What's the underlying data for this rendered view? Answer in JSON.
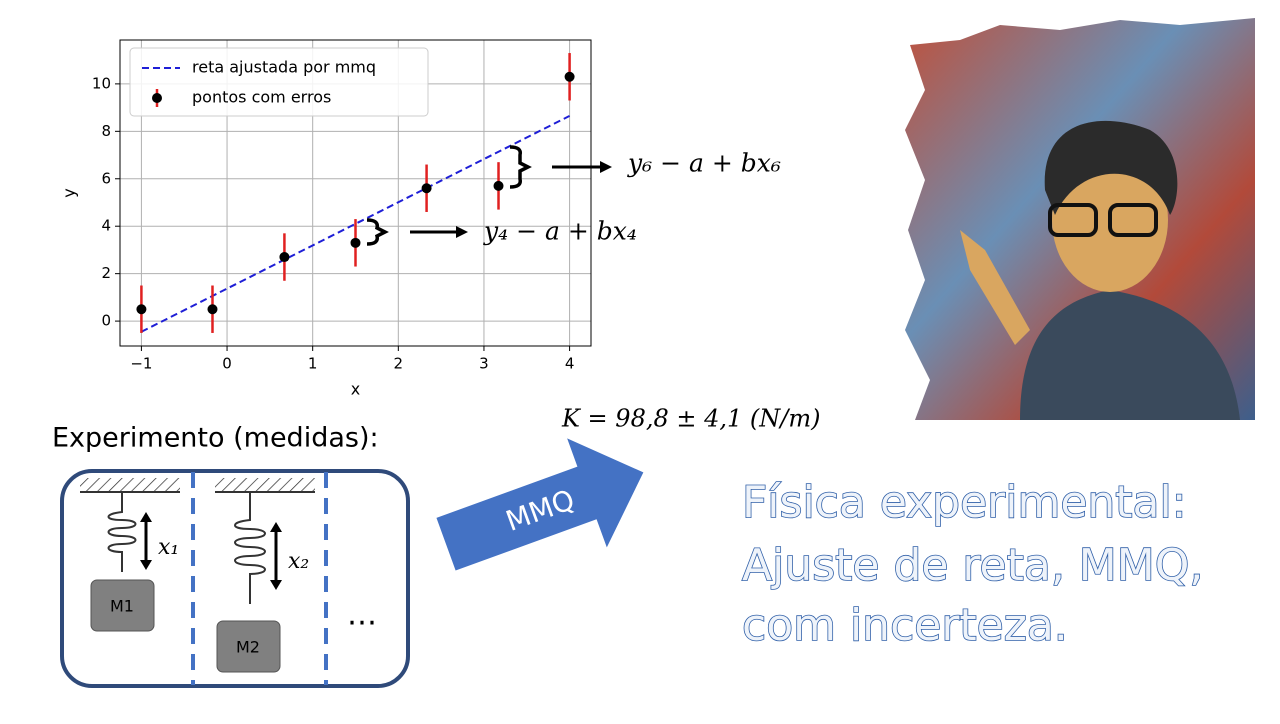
{
  "chart_data": {
    "type": "scatter",
    "xlabel": "x",
    "ylabel": "y",
    "xlim": [
      -1.25,
      4.25
    ],
    "ylim": [
      -1.05,
      11.85
    ],
    "xticks": [
      {
        "value": -1,
        "label": "−1"
      },
      0,
      1,
      2,
      3,
      4
    ],
    "yticks": [
      0,
      2,
      4,
      6,
      8,
      10
    ],
    "grid": true,
    "legend": "upper left",
    "series": [
      {
        "name": "reta ajustada por mmq",
        "kind": "dashed-line",
        "color": "#1f1fd6",
        "x": [
          -1,
          4
        ],
        "values": [
          -0.45,
          8.65
        ]
      },
      {
        "name": "pontos com erros",
        "kind": "errorbar",
        "color": "#000000",
        "error_color": "#e02020",
        "x": [
          -1,
          -0.17,
          0.67,
          1.5,
          2.33,
          3.17,
          4
        ],
        "values": [
          0.5,
          0.5,
          2.7,
          3.3,
          5.6,
          5.7,
          10.3
        ],
        "errors": [
          1.0,
          1.0,
          1.0,
          1.0,
          1.0,
          1.0,
          1.0
        ]
      }
    ],
    "annotations": [
      "y₆ − a + bx₆",
      "y₄ − a + bx₄"
    ]
  },
  "result": "K = 98,8 ± 4,1 (N/m)",
  "experiment": {
    "label": "Experimento (medidas):",
    "mass1": "M1",
    "mass2": "M2",
    "disp1": "x₁",
    "disp2": "x₂",
    "more": "…"
  },
  "arrow_label": "MMQ",
  "title": [
    "Física experimental:",
    "Ajuste de reta, MMQ,",
    "com incerteza."
  ]
}
